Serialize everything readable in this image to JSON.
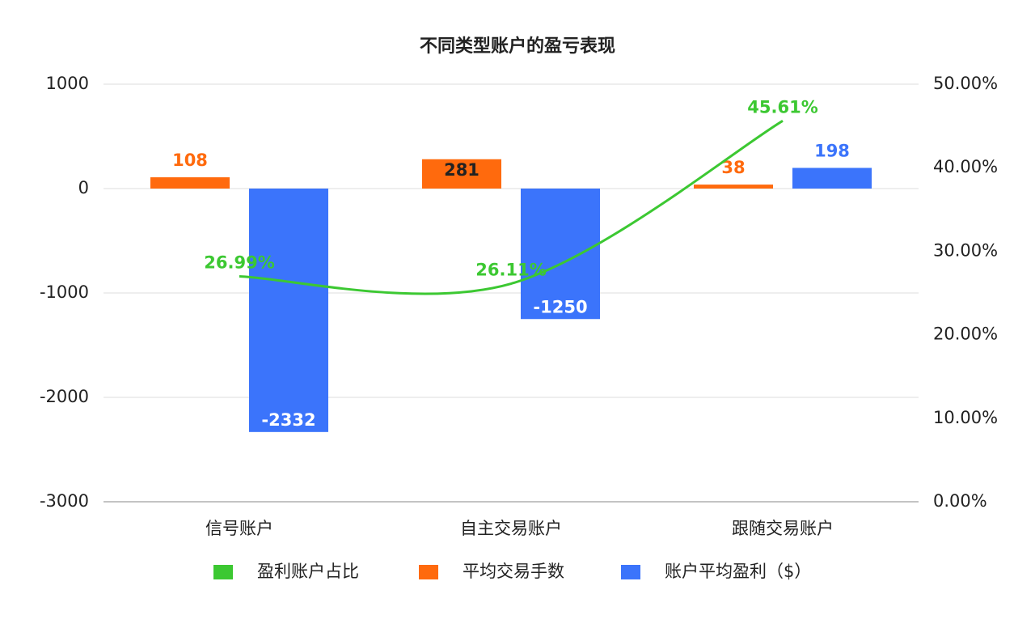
{
  "chart_data": {
    "type": "bar",
    "title": "不同类型账户的盈亏表现",
    "categories": [
      "信号账户",
      "自主交易账户",
      "跟随交易账户"
    ],
    "series": [
      {
        "name": "盈利账户占比",
        "type": "line",
        "axis": "y2",
        "color": "#3cc832",
        "values": [
          26.99,
          26.11,
          45.61
        ],
        "value_labels": [
          "26.99%",
          "26.11%",
          "45.61%"
        ]
      },
      {
        "name": "平均交易手数",
        "color": "#ff6a0d",
        "values": [
          108,
          281,
          38
        ]
      },
      {
        "name": "账户平均盈利（$）",
        "color": "#3b74fb",
        "values": [
          -2332,
          -1250,
          198
        ]
      }
    ],
    "ylim": [
      -3000,
      1000
    ],
    "yticks": [
      -3000,
      -2000,
      -1000,
      0,
      1000
    ],
    "y2lim": [
      0,
      50
    ],
    "y2ticks": [
      {
        "value": 0,
        "label": "0.00%"
      },
      {
        "value": 10,
        "label": "10.00%"
      },
      {
        "value": 20,
        "label": "20.00%"
      },
      {
        "value": 30,
        "label": "30.00%"
      },
      {
        "value": 40,
        "label": "40.00%"
      },
      {
        "value": 50,
        "label": "50.00%"
      }
    ],
    "grid": true,
    "legend": "bottom"
  }
}
